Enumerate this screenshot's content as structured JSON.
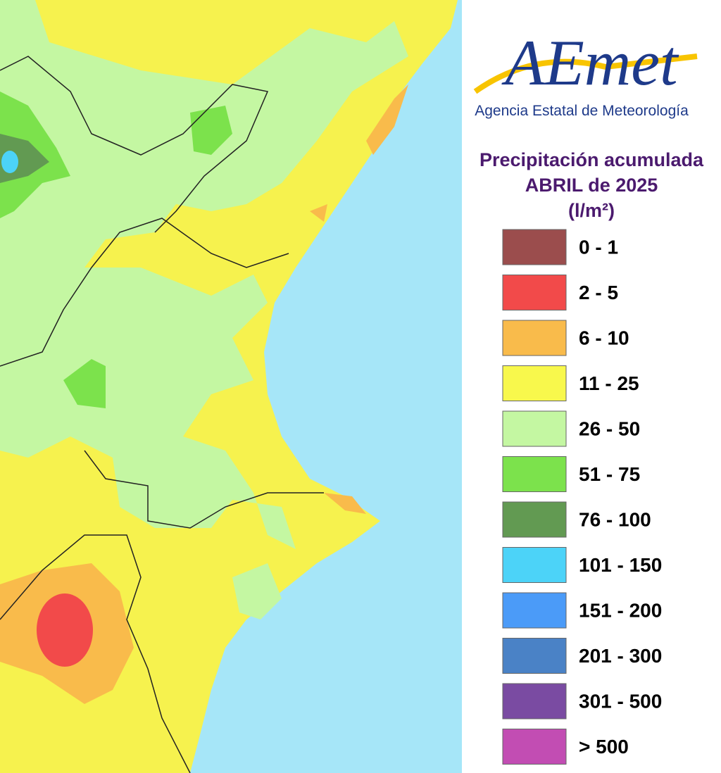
{
  "logo": "AEmet",
  "agency": "Agencia Estatal de Meteorología",
  "title": [
    "Precipitación acumulada",
    "ABRIL de 2025",
    "(l/m²)"
  ],
  "legend": [
    {
      "label": "0 - 1",
      "color": "#9b4d4d"
    },
    {
      "label": "2 - 5",
      "color": "#f24a4a"
    },
    {
      "label": "6 - 10",
      "color": "#f9bb4b"
    },
    {
      "label": "11 - 25",
      "color": "#f8f84c"
    },
    {
      "label": "26 - 50",
      "color": "#c4f7a2"
    },
    {
      "label": "51 - 75",
      "color": "#7ce24c"
    },
    {
      "label": "76 - 100",
      "color": "#629a52"
    },
    {
      "label": "101 - 150",
      "color": "#4cd3f8"
    },
    {
      "label": "151 - 200",
      "color": "#4b9bf8"
    },
    {
      "label": "201 - 300",
      "color": "#4a82c6"
    },
    {
      "label": "301 - 500",
      "color": "#7a4ba2"
    },
    {
      "label": "> 500",
      "color": "#c24db3"
    }
  ]
}
